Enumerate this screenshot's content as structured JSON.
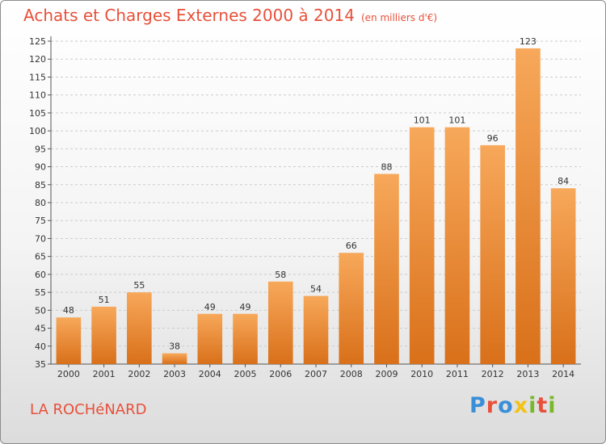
{
  "header": {
    "title": "Achats et Charges Externes 2000 à 2014",
    "subtitle": "(en milliers d'€)"
  },
  "footer": {
    "place": "LA ROCHéNARD",
    "logo_letters": [
      "P",
      "r",
      "o",
      "x",
      "i",
      "t",
      "i"
    ],
    "logo_colors": [
      "#3a8fd8",
      "#e8503a",
      "#3a8fd8",
      "#f2c218",
      "#79b829",
      "#e8503a",
      "#79b829"
    ]
  },
  "colors": {
    "title": "#e8503a",
    "bar_light": "#f7a85a",
    "bar_dark": "#d9701a"
  },
  "chart_data": {
    "type": "bar",
    "categories": [
      "2000",
      "2001",
      "2002",
      "2003",
      "2004",
      "2005",
      "2006",
      "2007",
      "2008",
      "2009",
      "2010",
      "2011",
      "2012",
      "2013",
      "2014"
    ],
    "values": [
      48,
      51,
      55,
      38,
      49,
      49,
      58,
      54,
      66,
      88,
      101,
      101,
      96,
      123,
      84
    ],
    "ylim": [
      35,
      125
    ],
    "yticks": [
      35,
      40,
      45,
      50,
      55,
      60,
      65,
      70,
      75,
      80,
      85,
      90,
      95,
      100,
      105,
      110,
      115,
      120,
      125
    ],
    "grid": true
  }
}
